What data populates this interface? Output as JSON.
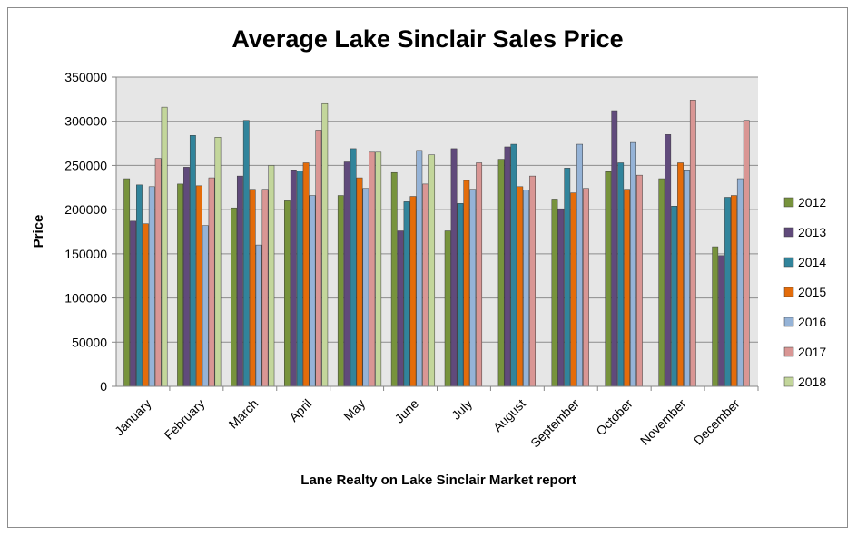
{
  "chart_data": {
    "type": "bar",
    "title": "Average Lake Sinclair Sales Price",
    "xlabel": "Lane Realty on Lake Sinclair Market report",
    "ylabel": "Price",
    "ylim": [
      0,
      350000
    ],
    "yticks": [
      "0",
      "50000",
      "100000",
      "150000",
      "200000",
      "250000",
      "300000",
      "350000"
    ],
    "grid": true,
    "legend_position": "right",
    "categories": [
      "January",
      "February",
      "March",
      "April",
      "May",
      "June",
      "July",
      "August",
      "September",
      "October",
      "November",
      "December"
    ],
    "series": [
      {
        "name": "2012",
        "color": "#77933c",
        "values": [
          235000,
          229000,
          202000,
          210000,
          216000,
          242000,
          176000,
          257000,
          212000,
          243000,
          235000,
          158000
        ]
      },
      {
        "name": "2013",
        "color": "#604a7b",
        "values": [
          187000,
          248000,
          238000,
          245000,
          254000,
          176000,
          269000,
          271000,
          201000,
          312000,
          285000,
          148000
        ]
      },
      {
        "name": "2014",
        "color": "#31849b",
        "values": [
          228000,
          284000,
          301000,
          244000,
          269000,
          209000,
          207000,
          274000,
          247000,
          253000,
          204000,
          214000
        ]
      },
      {
        "name": "2015",
        "color": "#e46c0a",
        "values": [
          184000,
          227000,
          223000,
          253000,
          236000,
          215000,
          233000,
          226000,
          219000,
          223000,
          253000,
          216000
        ]
      },
      {
        "name": "2016",
        "color": "#95b3d7",
        "values": [
          226000,
          182000,
          160000,
          216000,
          224000,
          267000,
          223000,
          222000,
          274000,
          276000,
          245000,
          235000
        ]
      },
      {
        "name": "2017",
        "color": "#d99694",
        "values": [
          258000,
          236000,
          223000,
          290000,
          265000,
          229000,
          253000,
          238000,
          224000,
          239000,
          324000,
          301000
        ]
      },
      {
        "name": "2018",
        "color": "#c3d69b",
        "values": [
          316000,
          282000,
          250000,
          320000,
          265000,
          262000,
          null,
          null,
          null,
          null,
          null,
          null
        ]
      }
    ]
  }
}
